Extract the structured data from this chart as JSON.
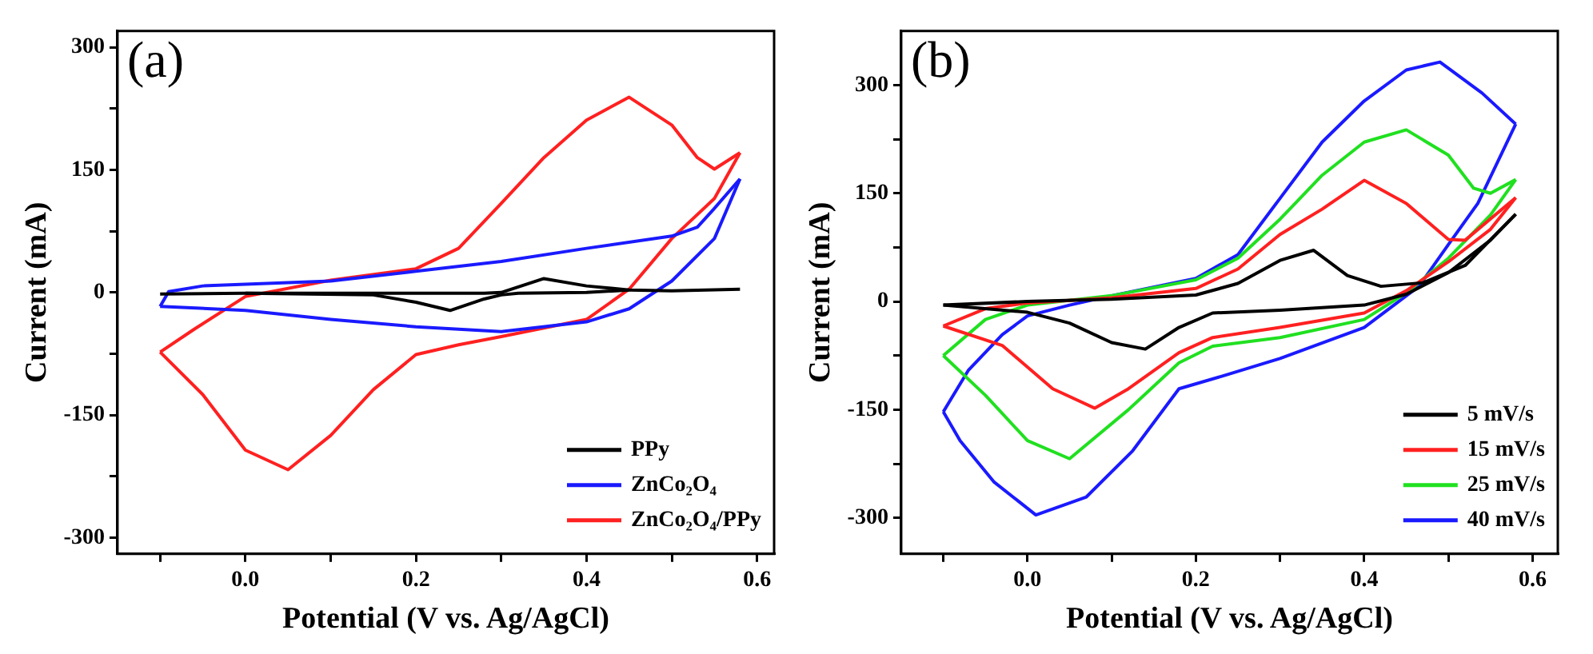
{
  "chart_data": [
    {
      "type": "line",
      "title": "(a)",
      "xlabel": "Potential (V vs. Ag/AgCl)",
      "ylabel": "Current (mA)",
      "xlim": [
        -0.15,
        0.62
      ],
      "ylim": [
        -320,
        320
      ],
      "xticks": [
        {
          "value": -0.1,
          "label": null
        },
        {
          "value": 0,
          "label": "0.0"
        },
        {
          "value": 0.1,
          "label": null
        },
        0.2,
        {
          "value": 0.3,
          "label": null
        },
        0.4,
        {
          "value": 0.5,
          "label": null
        },
        0.6
      ],
      "yticks": [
        -300,
        {
          "value": -225,
          "label": null
        },
        -150,
        {
          "value": -75,
          "label": null
        },
        0,
        {
          "value": 75,
          "label": null
        },
        150,
        {
          "value": 225,
          "label": null
        },
        300
      ],
      "legend": "bottom right",
      "marker": "none",
      "line_style": "solid",
      "series": [
        {
          "name": "PPy",
          "color": "#000000",
          "x": [
            -0.1,
            0.0,
            0.1,
            0.2,
            0.28,
            0.3,
            0.35,
            0.4,
            0.45,
            0.5,
            0.58
          ],
          "values": [
            -2,
            -1,
            -1,
            -1,
            -1,
            0,
            17,
            8,
            3,
            2,
            4
          ]
        },
        {
          "color": "#000000",
          "x": [
            0.0,
            0.15,
            0.2,
            0.24,
            0.28,
            0.3,
            0.32,
            0.4,
            0.45
          ],
          "values": [
            -1,
            -3,
            -12,
            -22,
            -8,
            -3,
            -1,
            0,
            3
          ]
        },
        {
          "name": "ZnCo₂O₄",
          "color": "#1a1aff",
          "x": [
            -0.1,
            -0.09,
            -0.05,
            0.1,
            0.2,
            0.3,
            0.4,
            0.5,
            0.53,
            0.55,
            0.58
          ],
          "values": [
            -17,
            1,
            8,
            14,
            26,
            38,
            54,
            69,
            80,
            103,
            139
          ]
        },
        {
          "color": "#1a1aff",
          "x": [
            -0.1,
            0.0,
            0.1,
            0.2,
            0.3,
            0.4,
            0.45,
            0.5,
            0.55,
            0.58
          ],
          "values": [
            -17,
            -22,
            -33,
            -42,
            -48,
            -36,
            -20,
            14,
            66,
            139
          ]
        },
        {
          "name": "ZnCo₂O₄/PPy",
          "color": "#ff2020",
          "x": [
            -0.1,
            -0.06,
            0.0,
            0.1,
            0.2,
            0.25,
            0.3,
            0.35,
            0.4,
            0.45,
            0.5,
            0.53,
            0.55,
            0.58
          ],
          "values": [
            -73,
            -45,
            -5,
            15,
            29,
            54,
            109,
            165,
            211,
            239,
            205,
            165,
            151,
            171
          ]
        },
        {
          "color": "#ff2020",
          "x": [
            -0.1,
            -0.05,
            0.0,
            0.05,
            0.1,
            0.15,
            0.2,
            0.25,
            0.3,
            0.4,
            0.45,
            0.5,
            0.55,
            0.58
          ],
          "values": [
            -73,
            -125,
            -193,
            -217,
            -175,
            -119,
            -76,
            -64,
            -54,
            -33,
            4,
            66,
            115,
            171
          ]
        }
      ]
    },
    {
      "type": "line",
      "title": "(b)",
      "xlabel": "Potential (V vs. Ag/AgCl)",
      "ylabel": "Current (mA)",
      "xlim": [
        -0.15,
        0.63
      ],
      "ylim": [
        -350,
        375
      ],
      "xticks": [
        {
          "value": -0.1,
          "label": null
        },
        {
          "value": 0,
          "label": "0.0"
        },
        {
          "value": 0.1,
          "label": null
        },
        0.2,
        {
          "value": 0.3,
          "label": null
        },
        0.4,
        {
          "value": 0.5,
          "label": null
        },
        0.6
      ],
      "yticks": [
        -300,
        {
          "value": -225,
          "label": null
        },
        -150,
        {
          "value": -75,
          "label": null
        },
        0,
        {
          "value": 75,
          "label": null
        },
        150,
        {
          "value": 225,
          "label": null
        },
        300
      ],
      "legend": "bottom right",
      "marker": "none",
      "line_style": "solid",
      "series": [
        {
          "name": "5 mV/s",
          "color": "#000000",
          "x": [
            -0.1,
            0.0,
            0.1,
            0.2,
            0.25,
            0.3,
            0.34,
            0.38,
            0.42,
            0.47,
            0.52,
            0.58
          ],
          "values": [
            -5,
            0,
            3,
            9,
            25,
            57,
            71,
            36,
            21,
            26,
            50,
            121
          ]
        },
        {
          "color": "#000000",
          "x": [
            -0.1,
            0.0,
            0.05,
            0.1,
            0.14,
            0.18,
            0.22,
            0.3,
            0.4,
            0.45,
            0.5,
            0.55,
            0.58
          ],
          "values": [
            -5,
            -15,
            -30,
            -57,
            -66,
            -36,
            -16,
            -12,
            -5,
            10,
            40,
            85,
            121
          ]
        },
        {
          "name": "15 mV/s",
          "color": "#ff2020",
          "x": [
            -0.1,
            -0.05,
            0.0,
            0.1,
            0.2,
            0.25,
            0.3,
            0.35,
            0.4,
            0.45,
            0.5,
            0.52,
            0.58
          ],
          "values": [
            -34,
            -10,
            -2,
            5,
            18,
            45,
            93,
            128,
            168,
            136,
            86,
            85,
            144
          ]
        },
        {
          "color": "#ff2020",
          "x": [
            -0.1,
            -0.03,
            0.03,
            0.08,
            0.12,
            0.18,
            0.22,
            0.3,
            0.4,
            0.45,
            0.5,
            0.55,
            0.58
          ],
          "values": [
            -34,
            -61,
            -121,
            -148,
            -121,
            -71,
            -50,
            -36,
            -16,
            15,
            55,
            100,
            144
          ]
        },
        {
          "name": "25 mV/s",
          "color": "#20e020",
          "x": [
            -0.1,
            -0.05,
            0.0,
            0.1,
            0.2,
            0.25,
            0.3,
            0.35,
            0.4,
            0.45,
            0.5,
            0.53,
            0.55,
            0.58
          ],
          "values": [
            -75,
            -25,
            -5,
            8,
            30,
            60,
            114,
            175,
            221,
            238,
            203,
            157,
            150,
            169
          ]
        },
        {
          "color": "#20e020",
          "x": [
            -0.1,
            -0.05,
            0.0,
            0.05,
            0.12,
            0.18,
            0.22,
            0.3,
            0.4,
            0.45,
            0.5,
            0.55,
            0.58
          ],
          "values": [
            -75,
            -130,
            -193,
            -218,
            -150,
            -85,
            -62,
            -50,
            -25,
            12,
            60,
            120,
            169
          ]
        },
        {
          "name": "40 mV/s",
          "color": "#1a1aff",
          "x": [
            -0.1,
            -0.07,
            -0.03,
            0.0,
            0.05,
            0.1,
            0.2,
            0.25,
            0.3,
            0.35,
            0.4,
            0.45,
            0.49,
            0.54,
            0.58
          ],
          "values": [
            -153,
            -95,
            -46,
            -20,
            -5,
            8,
            32,
            65,
            143,
            221,
            278,
            321,
            332,
            289,
            246
          ]
        },
        {
          "color": "#1a1aff",
          "x": [
            -0.1,
            -0.08,
            -0.04,
            0.01,
            0.07,
            0.125,
            0.18,
            0.23,
            0.3,
            0.4,
            0.465,
            0.5,
            0.535,
            0.58
          ],
          "values": [
            -153,
            -193,
            -250,
            -296,
            -271,
            -207,
            -121,
            -104,
            -79,
            -36,
            21,
            79,
            136,
            246
          ]
        }
      ]
    }
  ]
}
